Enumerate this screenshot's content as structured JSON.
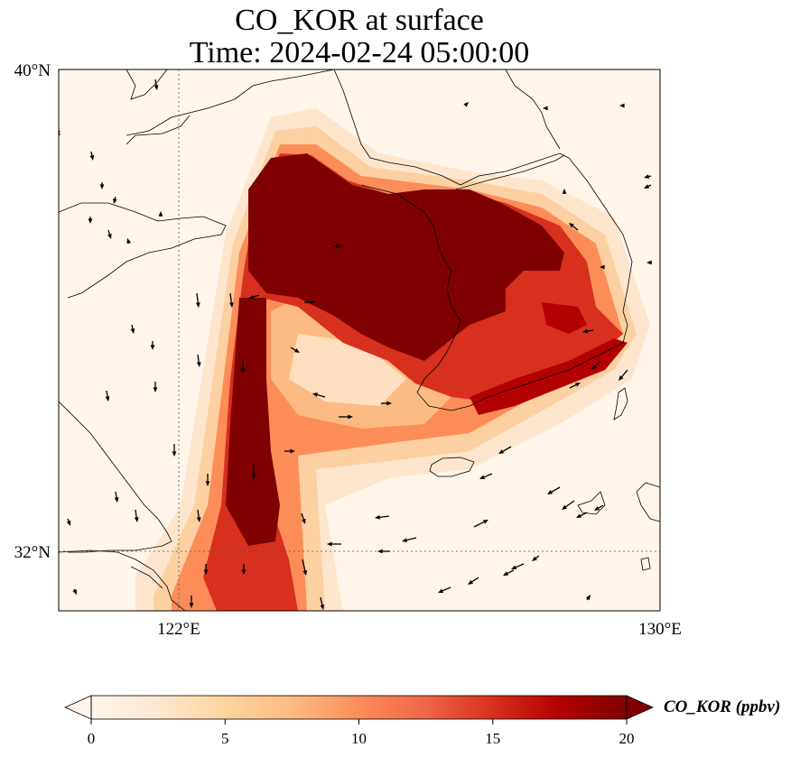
{
  "title": {
    "line1": "CO_KOR at surface",
    "line2": "Time: 2024-02-24 05:00:00"
  },
  "map": {
    "lon_range": [
      120,
      130
    ],
    "lat_range": [
      31,
      40
    ],
    "lon_ticks": [
      {
        "value": 122,
        "label": "122°E"
      },
      {
        "value": 130,
        "label": "130°E"
      }
    ],
    "lat_ticks": [
      {
        "value": 40,
        "label": "40°N"
      },
      {
        "value": 32,
        "label": "32°N"
      }
    ],
    "gridlines": "dotted",
    "background_color": "#fff5eb"
  },
  "colorbar": {
    "label": "CO_KOR (ppbv)",
    "min": 0,
    "max": 20,
    "ticks": [
      "0",
      "5",
      "10",
      "15",
      "20"
    ],
    "extend": "both",
    "colormap": "OrRd",
    "colors": [
      "#fff5eb",
      "#fee6ce",
      "#fdd0a2",
      "#fdae6b",
      "#fd8d3c",
      "#f16913",
      "#d94801",
      "#a63603",
      "#7f0000"
    ]
  },
  "plume": {
    "description_colors": {
      "max": "#7f0000",
      "high": "#b30000",
      "mid": "#ef6548",
      "low": "#fdbb84"
    }
  }
}
